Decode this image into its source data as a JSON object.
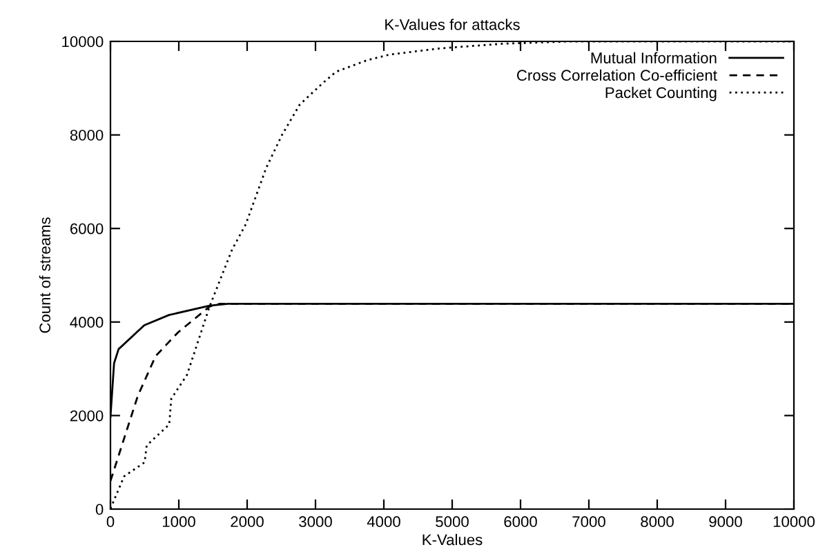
{
  "chart_data": {
    "type": "line",
    "title": "K-Values for attacks",
    "xlabel": "K-Values",
    "ylabel": "Count of streams",
    "xlim": [
      0,
      10000
    ],
    "ylim": [
      0,
      10000
    ],
    "xticks": [
      0,
      1000,
      2000,
      3000,
      4000,
      5000,
      6000,
      7000,
      8000,
      9000,
      10000
    ],
    "yticks": [
      0,
      2000,
      4000,
      6000,
      8000,
      10000
    ],
    "grid": false,
    "legend": "top right",
    "marker": "none",
    "series": [
      {
        "name": "Mutual Information",
        "color": "#000000",
        "line_style": "solid",
        "x": [
          0,
          53,
          119,
          495,
          857,
          1450,
          1720,
          10000
        ],
        "values": [
          1970,
          3120,
          3420,
          3930,
          4150,
          4350,
          4390,
          4390
        ]
      },
      {
        "name": "Cross Correlation Co-efficient",
        "color": "#000000",
        "line_style": "dashed",
        "x": [
          0,
          400,
          660,
          990,
          1450,
          1600,
          10000
        ],
        "values": [
          600,
          2420,
          3270,
          3780,
          4330,
          4390,
          4390
        ]
      },
      {
        "name": "Packet Counting",
        "color": "#000000",
        "line_style": "dotted",
        "x": [
          0,
          200,
          500,
          530,
          860,
          890,
          1120,
          1450,
          1780,
          1980,
          2280,
          2510,
          2770,
          3100,
          3300,
          3760,
          4090,
          4820,
          5740,
          6730,
          10000
        ],
        "values": [
          10,
          700,
          1000,
          1360,
          1810,
          2360,
          2870,
          4330,
          5550,
          6090,
          7300,
          8000,
          8650,
          9100,
          9350,
          9600,
          9720,
          9850,
          9950,
          10000,
          10000
        ]
      }
    ]
  }
}
